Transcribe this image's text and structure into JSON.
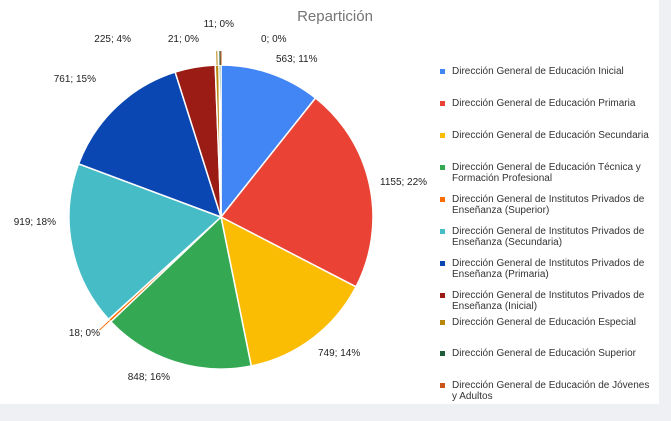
{
  "chart_data": {
    "type": "pie",
    "title": "Repartición",
    "legend_position": "right",
    "slices": [
      {
        "name": "Dirección General de Educación Inicial",
        "value": 563,
        "label": "563; 11%",
        "color": "#4285f4"
      },
      {
        "name": "Dirección General de Educación Primaria",
        "value": 1155,
        "label": "1155; 22%",
        "color": "#ea4335"
      },
      {
        "name": "Dirección General de Educación Secundaria",
        "value": 749,
        "label": "749; 14%",
        "color": "#fbbc04"
      },
      {
        "name": "Dirección General de Educación Técnica y Formación Profesional",
        "value": 848,
        "label": "848; 16%",
        "color": "#34a853"
      },
      {
        "name": "Dirección General de Institutos Privados de Enseñanza (Superior)",
        "value": 18,
        "label": "18; 0%",
        "color": "#ff6d01"
      },
      {
        "name": "Dirección General de Institutos Privados de Enseñanza (Secundaria)",
        "value": 919,
        "label": "919; 18%",
        "color": "#46bdc6"
      },
      {
        "name": "Dirección General de Institutos Privados de Enseñanza (Primaria)",
        "value": 761,
        "label": "761; 15%",
        "color": "#0b47b3"
      },
      {
        "name": "Dirección General de Institutos Privados de Enseñanza (Inicial)",
        "value": 225,
        "label": "225; 4%",
        "color": "#9b1c14"
      },
      {
        "name": "Dirección General de Educación Especial",
        "value": 21,
        "label": "21; 0%",
        "color": "#b8860b"
      },
      {
        "name": "Dirección General de Educación Superior",
        "value": 11,
        "label": "11; 0%",
        "color": "#1e5c3a"
      },
      {
        "name": "Dirección General de Educación de Jóvenes y Adultos",
        "value": 0,
        "label": "0; 0%",
        "color": "#c9541a"
      }
    ]
  }
}
